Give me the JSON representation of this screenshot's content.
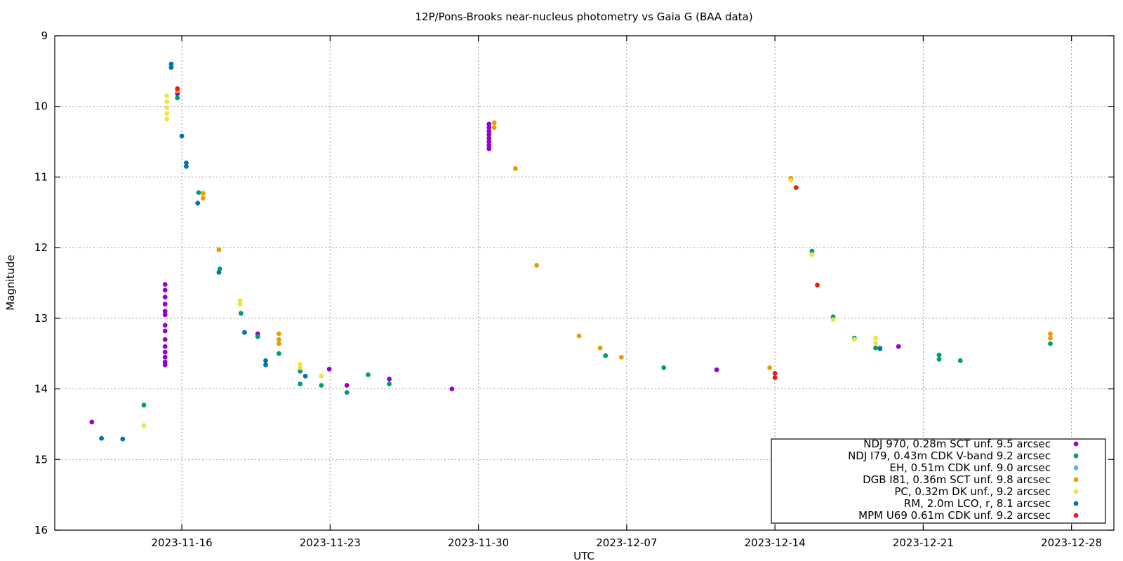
{
  "chart_data": {
    "type": "scatter",
    "title": "12P/Pons-Brooks near-nucleus photometry vs Gaia G (BAA data)",
    "xlabel": "UTC",
    "ylabel": "Magnitude",
    "x_type": "date",
    "xlim": [
      "2023-11-10",
      "2023-12-30"
    ],
    "ylim": [
      16,
      9
    ],
    "y_inverted": true,
    "x_ticks": [
      "2023-11-16",
      "2023-11-23",
      "2023-11-30",
      "2023-12-07",
      "2023-12-14",
      "2023-12-21",
      "2023-12-28"
    ],
    "y_ticks": [
      9,
      10,
      11,
      12,
      13,
      14,
      15,
      16
    ],
    "grid": true,
    "legend_position": "bottom-right",
    "series": [
      {
        "name": "NDJ 970, 0.28m SCT unf. 9.5 arcsec",
        "color": "#9400d3",
        "points": [
          {
            "x": "2023-11-11T18:00",
            "y": 14.47
          },
          {
            "x": "2023-11-15T05:00",
            "y": 12.52
          },
          {
            "x": "2023-11-15T05:00",
            "y": 12.6
          },
          {
            "x": "2023-11-15T05:00",
            "y": 12.7
          },
          {
            "x": "2023-11-15T05:00",
            "y": 12.8
          },
          {
            "x": "2023-11-15T05:00",
            "y": 12.9
          },
          {
            "x": "2023-11-15T05:00",
            "y": 12.95
          },
          {
            "x": "2023-11-15T05:00",
            "y": 13.1
          },
          {
            "x": "2023-11-15T05:00",
            "y": 13.18
          },
          {
            "x": "2023-11-15T05:00",
            "y": 13.3
          },
          {
            "x": "2023-11-15T05:00",
            "y": 13.4
          },
          {
            "x": "2023-11-15T05:00",
            "y": 13.48
          },
          {
            "x": "2023-11-15T05:00",
            "y": 13.55
          },
          {
            "x": "2023-11-15T05:00",
            "y": 13.62
          },
          {
            "x": "2023-11-15T05:00",
            "y": 13.66
          },
          {
            "x": "2023-11-15T19:00",
            "y": 9.75
          },
          {
            "x": "2023-11-15T19:00",
            "y": 9.82
          },
          {
            "x": "2023-11-19T14:00",
            "y": 13.22
          },
          {
            "x": "2023-11-22T23:00",
            "y": 13.72
          },
          {
            "x": "2023-11-23T19:00",
            "y": 13.95
          },
          {
            "x": "2023-11-25T19:00",
            "y": 13.86
          },
          {
            "x": "2023-11-28T18:00",
            "y": 14.0
          },
          {
            "x": "2023-11-30T12:00",
            "y": 10.25
          },
          {
            "x": "2023-11-30T12:00",
            "y": 10.3
          },
          {
            "x": "2023-11-30T12:00",
            "y": 10.35
          },
          {
            "x": "2023-11-30T12:00",
            "y": 10.4
          },
          {
            "x": "2023-11-30T12:00",
            "y": 10.45
          },
          {
            "x": "2023-11-30T12:00",
            "y": 10.5
          },
          {
            "x": "2023-11-30T12:00",
            "y": 10.55
          },
          {
            "x": "2023-11-30T12:00",
            "y": 10.6
          },
          {
            "x": "2023-12-11T06:00",
            "y": 13.73
          },
          {
            "x": "2023-12-19T20:00",
            "y": 13.4
          }
        ]
      },
      {
        "name": "NDJ I79, 0.43m CDK V-band 9.2 arcsec",
        "color": "#009e73",
        "points": [
          {
            "x": "2023-11-14T05:00",
            "y": 14.23
          },
          {
            "x": "2023-11-15T19:00",
            "y": 9.88
          },
          {
            "x": "2023-11-16T19:00",
            "y": 11.22
          },
          {
            "x": "2023-11-17T19:00",
            "y": 12.3
          },
          {
            "x": "2023-11-18T19:00",
            "y": 12.93
          },
          {
            "x": "2023-11-19T14:00",
            "y": 13.26
          },
          {
            "x": "2023-11-20T14:00",
            "y": 13.5
          },
          {
            "x": "2023-11-21T14:00",
            "y": 13.75
          },
          {
            "x": "2023-11-21T14:00",
            "y": 13.93
          },
          {
            "x": "2023-11-22T14:00",
            "y": 13.95
          },
          {
            "x": "2023-11-23T19:00",
            "y": 14.05
          },
          {
            "x": "2023-11-24T19:00",
            "y": 13.8
          },
          {
            "x": "2023-11-25T19:00",
            "y": 13.93
          },
          {
            "x": "2023-12-06T00:00",
            "y": 13.53
          },
          {
            "x": "2023-12-08T18:00",
            "y": 13.7
          },
          {
            "x": "2023-12-14T18:00",
            "y": 11.02
          },
          {
            "x": "2023-12-15T18:00",
            "y": 12.05
          },
          {
            "x": "2023-12-16T18:00",
            "y": 12.98
          },
          {
            "x": "2023-12-17T18:00",
            "y": 13.28
          },
          {
            "x": "2023-12-18T18:00",
            "y": 13.42
          },
          {
            "x": "2023-12-21T18:00",
            "y": 13.52
          },
          {
            "x": "2023-12-21T18:00",
            "y": 13.58
          },
          {
            "x": "2023-12-22T18:00",
            "y": 13.6
          },
          {
            "x": "2023-12-27T00:00",
            "y": 13.36
          }
        ]
      },
      {
        "name": "EH, 0.51m CDK unf. 9.0 arcsec",
        "color": "#56b4e9",
        "points": []
      },
      {
        "name": "DGB I81, 0.36m SCT unf. 9.8 arcsec",
        "color": "#e69f00",
        "points": [
          {
            "x": "2023-11-15T19:00",
            "y": 9.78
          },
          {
            "x": "2023-11-17T00:00",
            "y": 11.23
          },
          {
            "x": "2023-11-17T00:00",
            "y": 11.3
          },
          {
            "x": "2023-11-17T18:00",
            "y": 12.03
          },
          {
            "x": "2023-11-20T14:00",
            "y": 13.22
          },
          {
            "x": "2023-11-20T14:00",
            "y": 13.3
          },
          {
            "x": "2023-11-20T14:00",
            "y": 13.36
          },
          {
            "x": "2023-11-30T18:00",
            "y": 10.23
          },
          {
            "x": "2023-11-30T18:00",
            "y": 10.3
          },
          {
            "x": "2023-12-01T18:00",
            "y": 10.88
          },
          {
            "x": "2023-12-02T18:00",
            "y": 12.25
          },
          {
            "x": "2023-12-04T18:00",
            "y": 13.25
          },
          {
            "x": "2023-12-05T18:00",
            "y": 13.42
          },
          {
            "x": "2023-12-06T18:00",
            "y": 13.55
          },
          {
            "x": "2023-12-13T18:00",
            "y": 13.7
          },
          {
            "x": "2023-12-14T18:00",
            "y": 11.02
          },
          {
            "x": "2023-12-18T23:00",
            "y": 13.42
          },
          {
            "x": "2023-12-27T00:00",
            "y": 13.22
          },
          {
            "x": "2023-12-27T00:00",
            "y": 13.28
          }
        ]
      },
      {
        "name": "PC, 0.32m DK unf., 9.2 arcsec",
        "color": "#f0e442",
        "points": [
          {
            "x": "2023-11-14T05:00",
            "y": 14.52
          },
          {
            "x": "2023-11-15T07:00",
            "y": 9.85
          },
          {
            "x": "2023-11-15T07:00",
            "y": 9.93
          },
          {
            "x": "2023-11-15T07:00",
            "y": 10.02
          },
          {
            "x": "2023-11-15T07:00",
            "y": 10.1
          },
          {
            "x": "2023-11-15T07:00",
            "y": 10.18
          },
          {
            "x": "2023-11-18T18:00",
            "y": 12.75
          },
          {
            "x": "2023-11-18T18:00",
            "y": 12.8
          },
          {
            "x": "2023-11-21T14:00",
            "y": 13.65
          },
          {
            "x": "2023-11-21T14:00",
            "y": 13.7
          },
          {
            "x": "2023-11-22T14:00",
            "y": 13.82
          },
          {
            "x": "2023-12-14T18:00",
            "y": 11.05
          },
          {
            "x": "2023-12-15T18:00",
            "y": 12.1
          },
          {
            "x": "2023-12-16T18:00",
            "y": 13.02
          },
          {
            "x": "2023-12-17T18:00",
            "y": 13.3
          },
          {
            "x": "2023-12-18T18:00",
            "y": 13.28
          },
          {
            "x": "2023-12-18T18:00",
            "y": 13.35
          }
        ]
      },
      {
        "name": "RM, 2.0m LCO, r, 8.1 arcsec",
        "color": "#0072b2",
        "points": [
          {
            "x": "2023-11-12T05:00",
            "y": 14.7
          },
          {
            "x": "2023-11-13T05:00",
            "y": 14.71
          },
          {
            "x": "2023-11-15T12:00",
            "y": 9.4
          },
          {
            "x": "2023-11-15T12:00",
            "y": 9.45
          },
          {
            "x": "2023-11-16T00:00",
            "y": 10.42
          },
          {
            "x": "2023-11-16T05:00",
            "y": 10.8
          },
          {
            "x": "2023-11-16T05:00",
            "y": 10.85
          },
          {
            "x": "2023-11-16T18:00",
            "y": 11.37
          },
          {
            "x": "2023-11-17T18:00",
            "y": 12.35
          },
          {
            "x": "2023-11-18T23:00",
            "y": 13.2
          },
          {
            "x": "2023-11-19T23:00",
            "y": 13.6
          },
          {
            "x": "2023-11-19T23:00",
            "y": 13.66
          },
          {
            "x": "2023-11-21T20:00",
            "y": 13.82
          },
          {
            "x": "2023-12-18T23:00",
            "y": 13.43
          }
        ]
      },
      {
        "name": "MPM U69 0.61m CDK unf. 9.2 arcsec",
        "color": "#e51e10",
        "points": [
          {
            "x": "2023-11-15T19:00",
            "y": 9.75
          },
          {
            "x": "2023-12-14T00:00",
            "y": 13.78
          },
          {
            "x": "2023-12-14T00:00",
            "y": 13.84
          },
          {
            "x": "2023-12-15T00:00",
            "y": 11.15
          },
          {
            "x": "2023-12-16T00:00",
            "y": 12.53
          }
        ]
      }
    ]
  }
}
